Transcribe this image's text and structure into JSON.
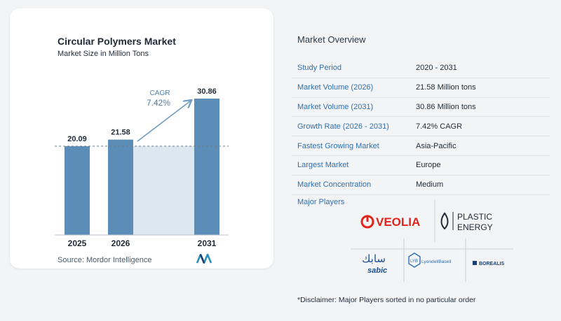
{
  "chart_data": {
    "type": "bar",
    "title": "Circular Polymers Market",
    "subtitle": "Market Size in Million Tons",
    "categories": [
      "2025",
      "2026",
      "2031"
    ],
    "values": [
      20.09,
      21.58,
      30.86
    ],
    "value_labels": [
      "20.09",
      "21.58",
      "30.86"
    ],
    "cagr_label": "CAGR",
    "cagr_value": "7.42%",
    "bar_color": "#5b8db8",
    "reference_line": 20.09
  },
  "source": "Source:  Mordor Intelligence",
  "overview": {
    "title": "Market Overview",
    "rows": [
      {
        "key": "Study Period",
        "value": "2020 - 2031"
      },
      {
        "key": "Market Volume (2026)",
        "value": "21.58 Million tons"
      },
      {
        "key": "Market Volume (2031)",
        "value": "30.86 Million tons"
      },
      {
        "key": "Growth Rate (2026 - 2031)",
        "value": "7.42% CAGR"
      },
      {
        "key": "Fastest Growing Market",
        "value": "Asia-Pacific"
      },
      {
        "key": "Largest Market",
        "value": "Europe"
      },
      {
        "key": "Market Concentration",
        "value": "Medium"
      }
    ]
  },
  "players": {
    "label": "Major Players",
    "logos": [
      "VEOLIA",
      "PLASTIC ENERGY",
      "sabic",
      "LyondellBasell",
      "BOREALIS"
    ]
  },
  "disclaimer": "*Disclaimer: Major Players sorted in no particular order",
  "colors": {
    "accent": "#2f6fb0",
    "bar": "#5b8db8",
    "bar_bg": "#dde7f0",
    "veolia": "#e0241b"
  }
}
